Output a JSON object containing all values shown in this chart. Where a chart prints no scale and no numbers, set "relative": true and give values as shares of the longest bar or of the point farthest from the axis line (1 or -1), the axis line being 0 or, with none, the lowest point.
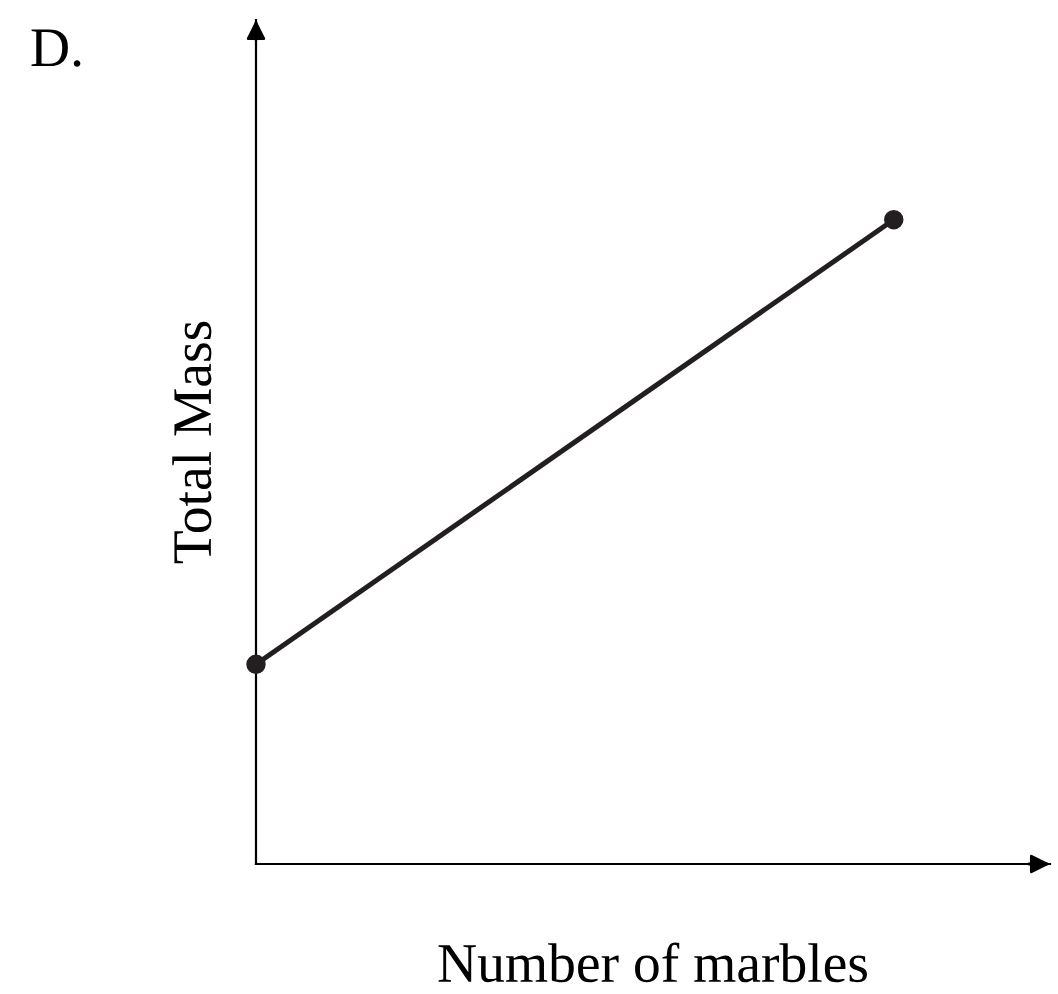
{
  "chart_data": {
    "type": "line",
    "title": "D.",
    "xlabel": "Number of marbles",
    "ylabel": "Total Mass",
    "categories": [
      null,
      null
    ],
    "relative": true,
    "marker": "circle",
    "line_style": "solid",
    "grid": false,
    "legend": false,
    "series": [
      {
        "color": "#231f20",
        "values": [
          0.31,
          1
        ]
      }
    ]
  }
}
